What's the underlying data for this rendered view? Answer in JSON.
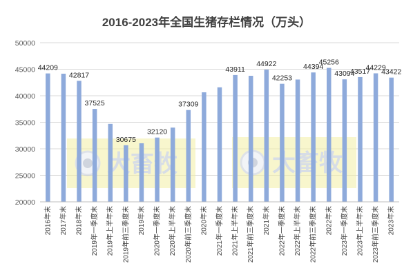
{
  "chart_data": {
    "type": "bar",
    "title": "2016-2023年全国生猪存栏情况（万头）",
    "xlabel": "",
    "ylabel": "",
    "ylim": [
      20000,
      50000
    ],
    "yticks": [
      20000,
      25000,
      30000,
      35000,
      40000,
      45000,
      50000
    ],
    "grid": true,
    "legend": "none",
    "bar_color": "#8eaadb",
    "watermark_text": "大畜牧",
    "categories": [
      "2016年末",
      "2017年末",
      "2018年末",
      "2019年一季度末",
      "2019年上半年末",
      "2019年前三季度末",
      "2019年末",
      "2020年一季度末",
      "2020年上半年末",
      "2020年前三季度末",
      "2020年末",
      "2021年一季度末",
      "2021年上半年末",
      "2021年前三季度末",
      "2021年末",
      "2022年一季度末",
      "2022年上半年末",
      "2022年前三季度末",
      "2022年末",
      "2023年一季度末",
      "2023年上半年末",
      "2023年前三季度末",
      "2023年末"
    ],
    "values": [
      44209,
      44159,
      42817,
      37525,
      34700,
      30675,
      31041,
      32120,
      33996,
      37309,
      40650,
      41595,
      43911,
      43764,
      44922,
      42253,
      43057,
      44394,
      45256,
      43094,
      43517,
      44229,
      43422
    ],
    "labels": [
      "44209",
      "",
      "42817",
      "37525",
      "",
      "30675",
      "",
      "32120",
      "",
      "37309",
      "",
      "",
      "43911",
      "",
      "44922",
      "42253",
      "",
      "44394",
      "45256",
      "43094",
      "43517",
      "44229",
      "43422"
    ]
  }
}
